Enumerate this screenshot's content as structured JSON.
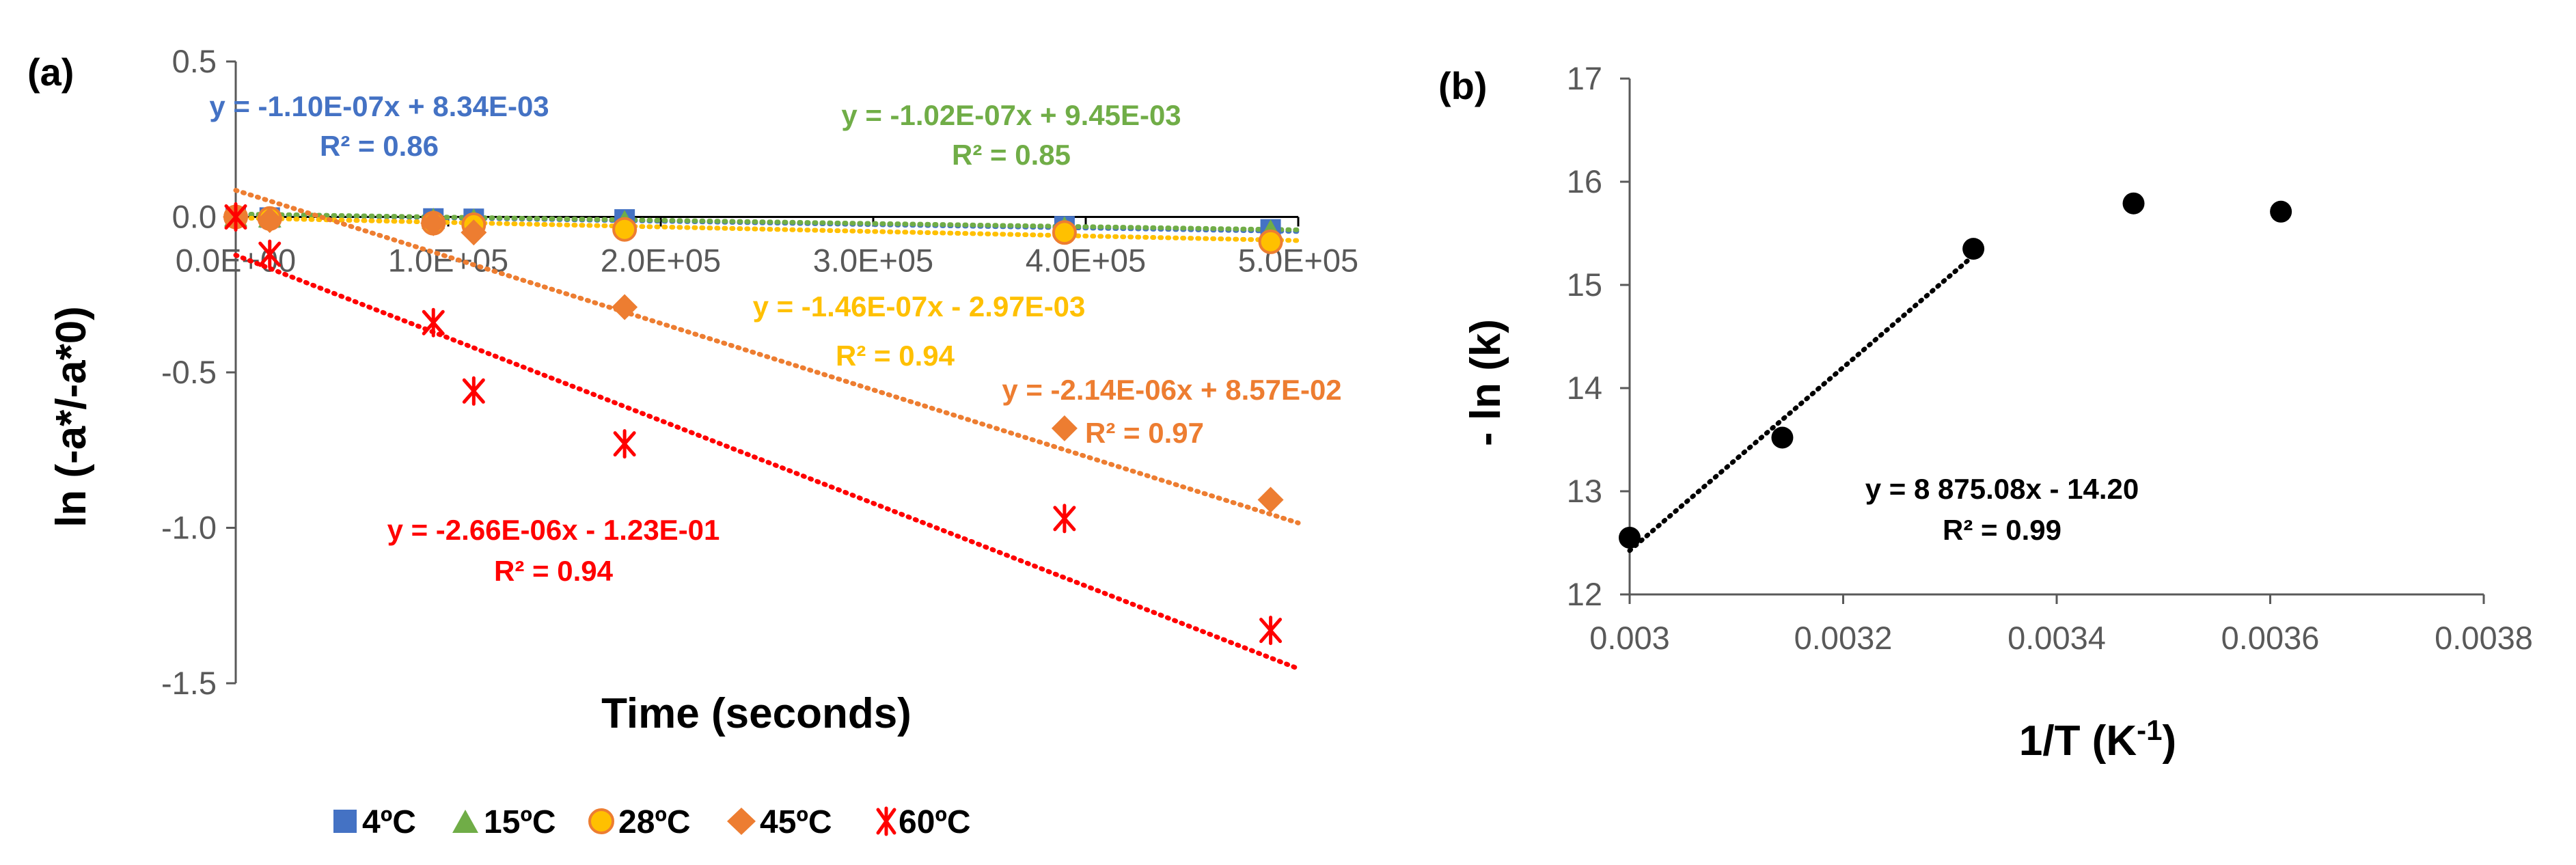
{
  "chart_data": [
    {
      "type": "scatter",
      "panel_label": "(a)",
      "xlabel": "Time (seconds)",
      "ylabel": "ln (-a*/-a*0)",
      "xlim": [
        0,
        500000
      ],
      "ylim": [
        -1.5,
        0.5
      ],
      "x_ticks": [
        0,
        100000,
        200000,
        300000,
        400000,
        500000
      ],
      "x_tick_labels": [
        "0.0E+00",
        "1.0E+05",
        "2.0E+05",
        "3.0E+05",
        "4.0E+05",
        "5.0E+05"
      ],
      "y_ticks": [
        0.5,
        0.0,
        -0.5,
        -1.0,
        -1.5
      ],
      "y_tick_labels": [
        "0.5",
        "0.0",
        "-0.5",
        "-1.0",
        "-1.5"
      ],
      "grid": false,
      "legend_position": "bottom",
      "series": [
        {
          "name": "4ºC",
          "marker": "square",
          "color": "#4472C4",
          "x": [
            0,
            16000,
            93000,
            112000,
            183000,
            390000,
            487000
          ],
          "y": [
            0.0,
            -0.002,
            -0.005,
            -0.006,
            -0.008,
            -0.03,
            -0.04
          ],
          "trendline": {
            "slope": -1.1e-07,
            "intercept": 0.00834
          },
          "equation": "y = -1.10E-07x + 8.34E-03",
          "r2": "R² = 0.86"
        },
        {
          "name": "15ºC",
          "marker": "triangle",
          "color": "#70AD47",
          "x": [
            0,
            16000,
            93000,
            112000,
            183000,
            390000,
            487000
          ],
          "y": [
            0.0,
            -0.003,
            -0.008,
            -0.01,
            -0.015,
            -0.035,
            -0.045
          ],
          "trendline": {
            "slope": -1.02e-07,
            "intercept": 0.00945
          },
          "equation": "y = -1.02E-07x + 9.45E-03",
          "r2": "R² = 0.85"
        },
        {
          "name": "28ºC",
          "marker": "circle",
          "color": "#FFC000",
          "x": [
            0,
            16000,
            93000,
            112000,
            183000,
            390000,
            487000
          ],
          "y": [
            0.0,
            -0.005,
            -0.02,
            -0.025,
            -0.04,
            -0.05,
            -0.08
          ],
          "trendline": {
            "slope": -1.46e-07,
            "intercept": -0.00297
          },
          "equation": "y = -1.46E-07x - 2.97E-03",
          "r2": "R² = 0.94"
        },
        {
          "name": "45ºC",
          "marker": "diamond",
          "color": "#ED7D31",
          "x": [
            0,
            16000,
            93000,
            112000,
            183000,
            390000,
            487000
          ],
          "y": [
            0.0,
            -0.01,
            -0.02,
            -0.05,
            -0.29,
            -0.68,
            -0.91
          ],
          "trendline": {
            "slope": -2.14e-06,
            "intercept": 0.0857
          },
          "equation": "y = -2.14E-06x + 8.57E-02",
          "r2": "R² = 0.97"
        },
        {
          "name": "60ºC",
          "marker": "star",
          "color": "#FF0000",
          "x": [
            0,
            16000,
            93000,
            112000,
            183000,
            390000,
            487000
          ],
          "y": [
            0.0,
            -0.12,
            -0.34,
            -0.56,
            -0.73,
            -0.97,
            -1.33
          ],
          "trendline": {
            "slope": -2.66e-06,
            "intercept": -0.123
          },
          "equation": "y = -2.66E-06x - 1.23E-01",
          "r2": "R² = 0.94"
        }
      ]
    },
    {
      "type": "scatter",
      "panel_label": "(b)",
      "xlabel": "1/T (K",
      "xlabel_sup": "-1",
      "xlabel_close": ")",
      "ylabel": "- ln (k)",
      "xlim": [
        0.003,
        0.0038
      ],
      "ylim": [
        12,
        17
      ],
      "x_ticks": [
        0.003,
        0.0032,
        0.0034,
        0.0036,
        0.0038
      ],
      "x_tick_labels": [
        "0.003",
        "0.0032",
        "0.0034",
        "0.0036",
        "0.0038"
      ],
      "y_ticks": [
        12,
        13,
        14,
        15,
        16,
        17
      ],
      "y_tick_labels": [
        "12",
        "13",
        "14",
        "15",
        "16",
        "17"
      ],
      "grid": false,
      "points": {
        "x": [
          0.003,
          0.003143,
          0.003322,
          0.003472,
          0.00361
        ],
        "y": [
          12.55,
          13.52,
          15.35,
          15.79,
          15.71
        ],
        "color": "#000000"
      },
      "trendline": {
        "slope": 8875.08,
        "intercept": -14.2,
        "x_range": [
          0.003,
          0.003322
        ]
      },
      "equation": "y = 8 875.08x - 14.20",
      "r2": "R² = 0.99"
    }
  ]
}
